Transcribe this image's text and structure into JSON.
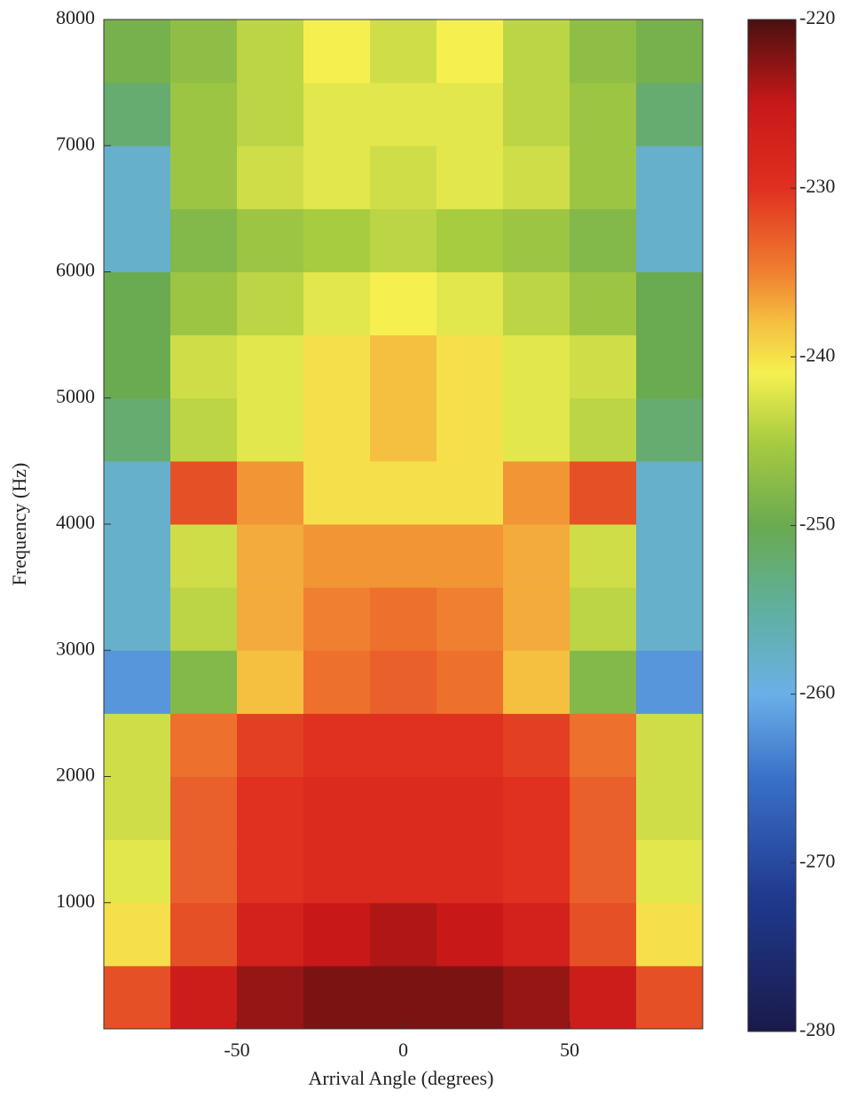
{
  "chart_data": {
    "type": "heatmap",
    "xlabel": "Arrival Angle (degrees)",
    "ylabel": "Frequency (Hz)",
    "x": [
      -80,
      -60,
      -40,
      -20,
      0,
      20,
      40,
      60,
      80
    ],
    "y": [
      250,
      750,
      1250,
      1750,
      2250,
      2750,
      3250,
      3750,
      4250,
      4750,
      5250,
      5750,
      6250,
      6750,
      7250,
      7750
    ],
    "values": [
      [
        -232,
        -226,
        -223,
        -222,
        -222,
        -222,
        -223,
        -226,
        -232
      ],
      [
        -240,
        -232,
        -227,
        -225,
        -224,
        -225,
        -227,
        -232,
        -240
      ],
      [
        -242,
        -233,
        -230,
        -229,
        -229,
        -229,
        -230,
        -233,
        -242
      ],
      [
        -243,
        -233,
        -230,
        -229,
        -229,
        -229,
        -230,
        -233,
        -243
      ],
      [
        -243,
        -234,
        -231,
        -230,
        -230,
        -230,
        -231,
        -234,
        -243
      ],
      [
        -262,
        -248,
        -238,
        -234,
        -233,
        -234,
        -238,
        -248,
        -262
      ],
      [
        -258,
        -244,
        -237,
        -235,
        -234,
        -235,
        -237,
        -244,
        -258
      ],
      [
        -258,
        -243,
        -237,
        -236,
        -236,
        -236,
        -237,
        -243,
        -258
      ],
      [
        -258,
        -232,
        -236,
        -240,
        -240,
        -240,
        -236,
        -232,
        -258
      ],
      [
        -252,
        -244,
        -242,
        -240,
        -238,
        -240,
        -242,
        -244,
        -252
      ],
      [
        -250,
        -243,
        -242,
        -240,
        -238,
        -240,
        -242,
        -243,
        -250
      ],
      [
        -250,
        -246,
        -244,
        -242,
        -241,
        -242,
        -244,
        -246,
        -250
      ],
      [
        -258,
        -248,
        -246,
        -245,
        -244,
        -245,
        -246,
        -248,
        -258
      ],
      [
        -258,
        -246,
        -243,
        -242,
        -243,
        -242,
        -243,
        -246,
        -258
      ],
      [
        -252,
        -246,
        -244,
        -242,
        -242,
        -242,
        -244,
        -246,
        -252
      ],
      [
        -249,
        -247,
        -244,
        -241,
        -243,
        -241,
        -244,
        -247,
        -249
      ]
    ],
    "xlim": [
      -90,
      90
    ],
    "xticks": [
      -50,
      0,
      50
    ],
    "ylim": [
      0,
      8000
    ],
    "yticks": [
      1000,
      2000,
      3000,
      4000,
      5000,
      6000,
      7000,
      8000
    ],
    "clim": [
      -280,
      -220
    ],
    "cticks": [
      -280,
      -270,
      -260,
      -250,
      -240,
      -230,
      -220
    ],
    "colormap": [
      {
        "value": -280,
        "color": "#1a1a4a"
      },
      {
        "value": -272,
        "color": "#1f3a8f"
      },
      {
        "value": -265,
        "color": "#3a70c8"
      },
      {
        "value": -260,
        "color": "#6ab0e8"
      },
      {
        "value": -255,
        "color": "#5fb0a0"
      },
      {
        "value": -250,
        "color": "#6aaa50"
      },
      {
        "value": -245,
        "color": "#a8cc40"
      },
      {
        "value": -241,
        "color": "#f5f050"
      },
      {
        "value": -238,
        "color": "#f5c040"
      },
      {
        "value": -235,
        "color": "#f08030"
      },
      {
        "value": -230,
        "color": "#e03020"
      },
      {
        "value": -225,
        "color": "#c81818"
      },
      {
        "value": -220,
        "color": "#4a1010"
      }
    ]
  }
}
